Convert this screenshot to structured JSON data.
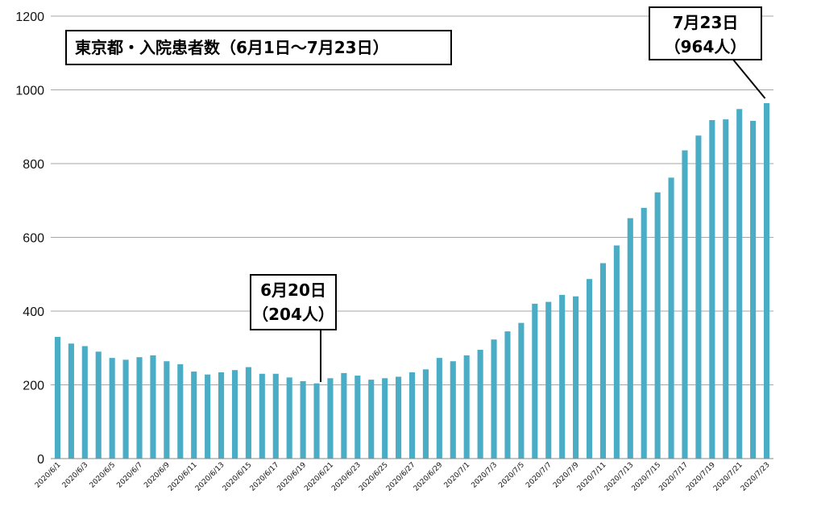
{
  "chart_data": {
    "type": "bar",
    "title": "東京都・入院患者数（6月1日～7月23日）",
    "categories": [
      "2020/6/1",
      "2020/6/2",
      "2020/6/3",
      "2020/6/4",
      "2020/6/5",
      "2020/6/6",
      "2020/6/7",
      "2020/6/8",
      "2020/6/9",
      "2020/6/10",
      "2020/6/11",
      "2020/6/12",
      "2020/6/13",
      "2020/6/14",
      "2020/6/15",
      "2020/6/16",
      "2020/6/17",
      "2020/6/18",
      "2020/6/19",
      "2020/6/20",
      "2020/6/21",
      "2020/6/22",
      "2020/6/23",
      "2020/6/24",
      "2020/6/25",
      "2020/6/26",
      "2020/6/27",
      "2020/6/28",
      "2020/6/29",
      "2020/6/30",
      "2020/7/1",
      "2020/7/2",
      "2020/7/3",
      "2020/7/4",
      "2020/7/5",
      "2020/7/6",
      "2020/7/7",
      "2020/7/8",
      "2020/7/9",
      "2020/7/10",
      "2020/7/11",
      "2020/7/12",
      "2020/7/13",
      "2020/7/14",
      "2020/7/15",
      "2020/7/16",
      "2020/7/17",
      "2020/7/18",
      "2020/7/19",
      "2020/7/20",
      "2020/7/21",
      "2020/7/22",
      "2020/7/23"
    ],
    "tick_labels": [
      "2020/6/1",
      "2020/6/3",
      "2020/6/5",
      "2020/6/7",
      "2020/6/9",
      "2020/6/11",
      "2020/6/13",
      "2020/6/15",
      "2020/6/17",
      "2020/6/19",
      "2020/6/21",
      "2020/6/23",
      "2020/6/25",
      "2020/6/27",
      "2020/6/29",
      "2020/7/1",
      "2020/7/3",
      "2020/7/5",
      "2020/7/7",
      "2020/7/9",
      "2020/7/11",
      "2020/7/13",
      "2020/7/15",
      "2020/7/17",
      "2020/7/19",
      "2020/7/21",
      "2020/7/23"
    ],
    "values": [
      330,
      312,
      305,
      290,
      273,
      268,
      275,
      280,
      264,
      256,
      236,
      228,
      234,
      240,
      248,
      230,
      230,
      220,
      210,
      204,
      218,
      232,
      225,
      214,
      218,
      222,
      234,
      242,
      273,
      264,
      280,
      295,
      323,
      345,
      368,
      420,
      425,
      444,
      440,
      487,
      530,
      578,
      652,
      680,
      722,
      762,
      836,
      876,
      918,
      920,
      948,
      916,
      964
    ],
    "ylim": [
      0,
      1200
    ],
    "yticks": [
      0,
      200,
      400,
      600,
      800,
      1000,
      1200
    ],
    "grid": true,
    "bar_color": "#4bacc6",
    "annotations": [
      {
        "category": "2020/6/20",
        "line1": "6月20日",
        "line2": "（204人）"
      },
      {
        "category": "2020/7/23",
        "line1": "7月23日",
        "line2": "（964人）"
      }
    ]
  }
}
